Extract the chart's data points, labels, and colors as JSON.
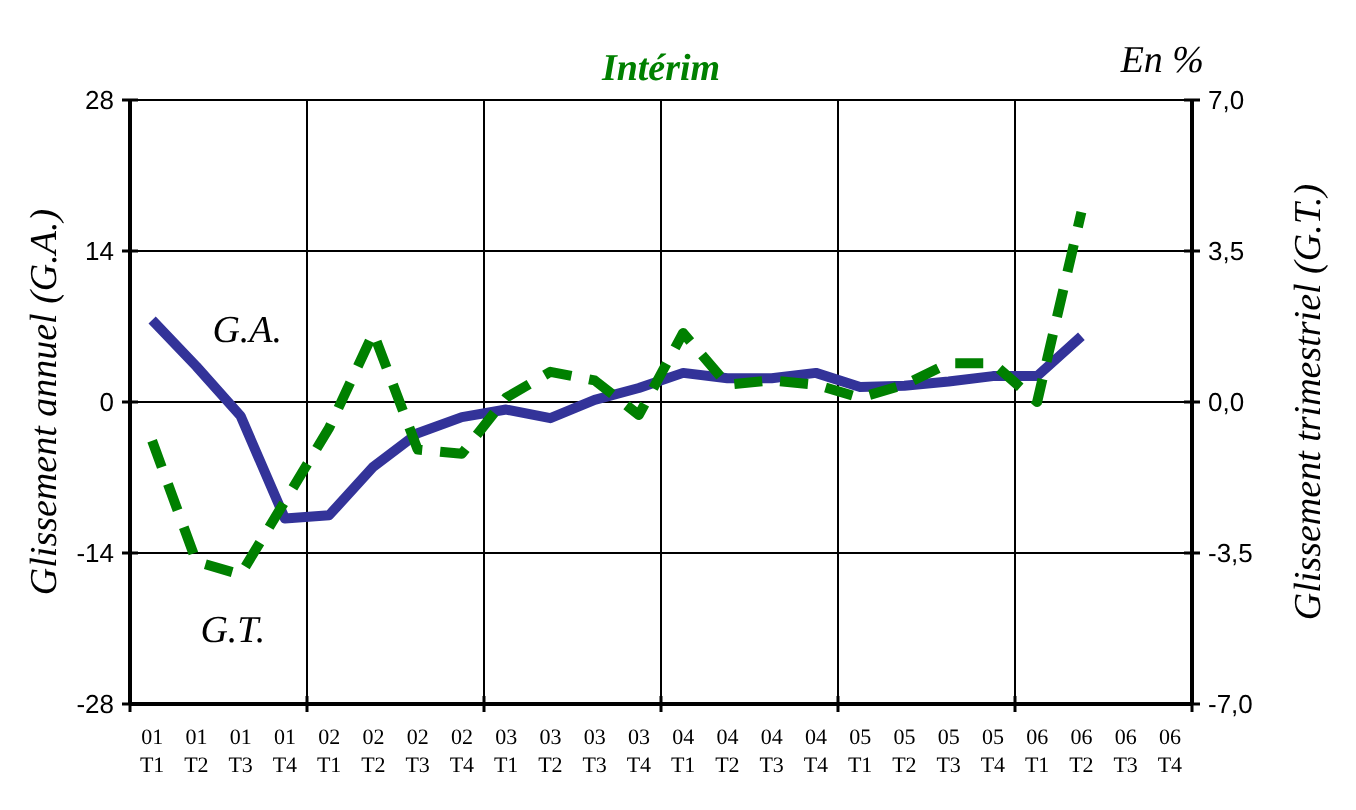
{
  "chart_data": {
    "type": "line",
    "title": "Intérim",
    "ylabel": "Glissement annuel (G.A.)",
    "y2label": "Glissement trimestriel (G.T.)",
    "annotations": [
      "En %"
    ],
    "categories": [
      "01 T1",
      "01 T2",
      "01 T3",
      "01 T4",
      "02 T1",
      "02 T2",
      "02 T3",
      "02 T4",
      "03 T1",
      "03 T2",
      "03 T3",
      "03 T4",
      "04 T1",
      "04 T2",
      "04 T3",
      "04 T4",
      "05 T1",
      "05 T2",
      "05 T3",
      "05 T4",
      "06 T1",
      "06 T2",
      "06 T3",
      "06 T4"
    ],
    "ylim": [
      -28,
      28
    ],
    "yticks": [
      -28,
      -14,
      0,
      14,
      28
    ],
    "y2lim": [
      -7,
      7
    ],
    "y2ticks": [
      {
        "value": -7,
        "label": "-7,0"
      },
      {
        "value": -3.5,
        "label": "-3,5"
      },
      {
        "value": 0,
        "label": "0,0"
      },
      {
        "value": 3.5,
        "label": "3,5"
      },
      {
        "value": 7,
        "label": "7,0"
      }
    ],
    "grid": true,
    "series": [
      {
        "name": "G.A.",
        "color": "#333399",
        "line_style": "solid",
        "values": [
          7.6,
          3.3,
          -1.3,
          -10.8,
          -10.5,
          -6.0,
          -2.9,
          -1.4,
          -0.7,
          -1.5,
          0.2,
          1.3,
          2.7,
          2.2,
          2.2,
          2.7,
          1.4,
          1.5,
          1.9,
          2.4,
          2.4,
          6.1,
          null,
          null
        ]
      },
      {
        "name": "G.T.",
        "color": "#008000",
        "axis": "y2",
        "line_style": "dashed",
        "values": [
          -0.9,
          -3.7,
          -4.0,
          -2.3,
          -0.6,
          1.6,
          -1.1,
          -1.2,
          0.1,
          0.7,
          0.5,
          -0.3,
          1.6,
          0.4,
          0.5,
          0.4,
          0.1,
          0.4,
          0.9,
          0.9,
          0.0,
          4.4,
          null,
          null
        ]
      }
    ]
  }
}
